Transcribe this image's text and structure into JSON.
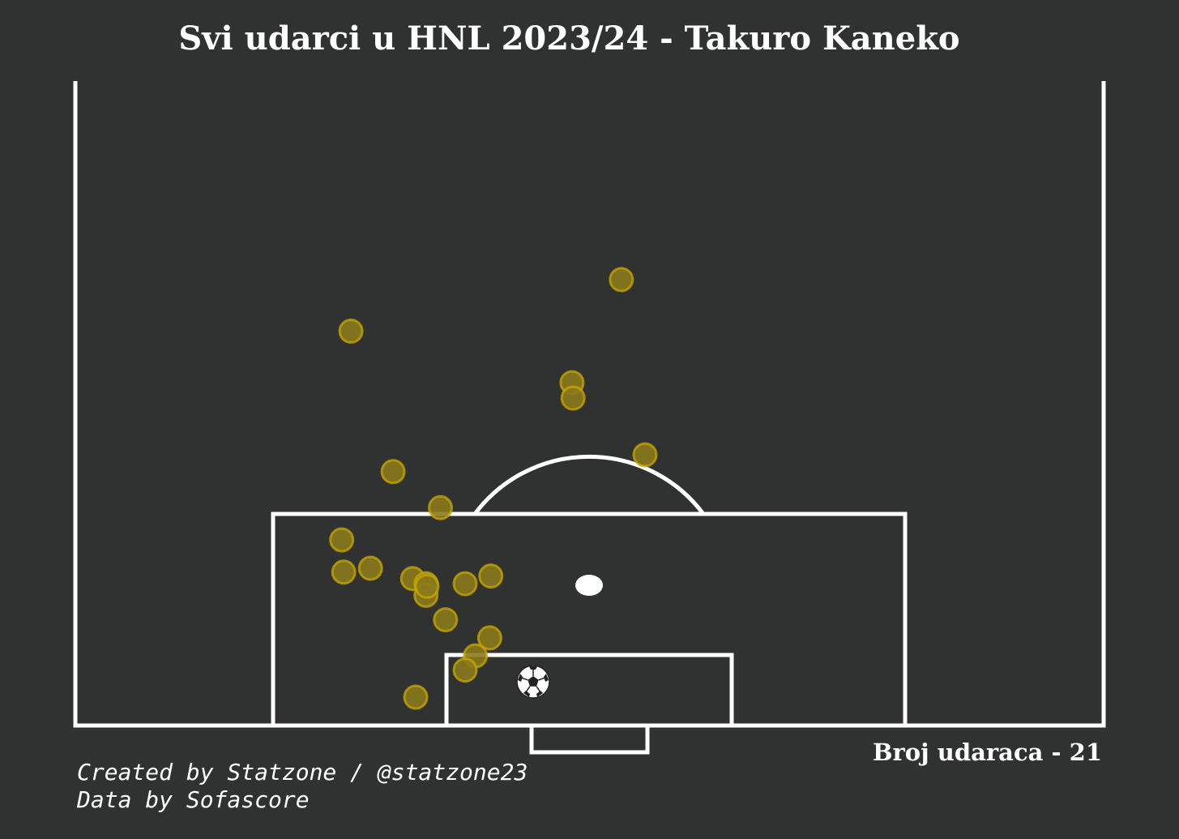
{
  "title": "Svi udarci u HNL 2023/24 - Takuro Kaneko",
  "shot_count_label": "Broj udaraca - 21",
  "credits": {
    "line1": "Created by Statzone / @statzone23",
    "line2": "Data by Sofascore"
  },
  "colors": {
    "background": "#303131",
    "lines": "#ffffff",
    "shot_fill": "#8b7a1c",
    "shot_stroke": "#c9a800"
  },
  "icons": {
    "ball": "soccer-ball-icon"
  },
  "chart_data": {
    "type": "scatter",
    "title": "Svi udarci u HNL 2023/24 - Takuro Kaneko",
    "xlabel": "",
    "ylabel": "",
    "xlim": [
      0,
      100
    ],
    "ylim": [
      50,
      100
    ],
    "grid": false,
    "total_shots": 21,
    "series": [
      {
        "points": [
          {
            "x": 26.8,
            "y": 80.6
          },
          {
            "x": 48.3,
            "y": 76.6
          },
          {
            "x": 48.4,
            "y": 75.4
          },
          {
            "x": 53.1,
            "y": 84.6
          },
          {
            "x": 55.4,
            "y": 71.0
          },
          {
            "x": 30.9,
            "y": 69.7
          },
          {
            "x": 35.5,
            "y": 66.9
          },
          {
            "x": 25.9,
            "y": 64.4
          },
          {
            "x": 28.7,
            "y": 62.2
          },
          {
            "x": 26.1,
            "y": 61.9
          },
          {
            "x": 32.8,
            "y": 61.4
          },
          {
            "x": 34.1,
            "y": 61.0
          },
          {
            "x": 34.1,
            "y": 60.1
          },
          {
            "x": 37.9,
            "y": 61.0
          },
          {
            "x": 40.4,
            "y": 61.6
          },
          {
            "x": 36.0,
            "y": 58.2
          },
          {
            "x": 40.3,
            "y": 56.8
          },
          {
            "x": 38.9,
            "y": 55.4
          },
          {
            "x": 37.9,
            "y": 54.3
          },
          {
            "x": 33.1,
            "y": 52.2
          },
          {
            "x": 34.2,
            "y": 60.8
          }
        ]
      }
    ]
  }
}
